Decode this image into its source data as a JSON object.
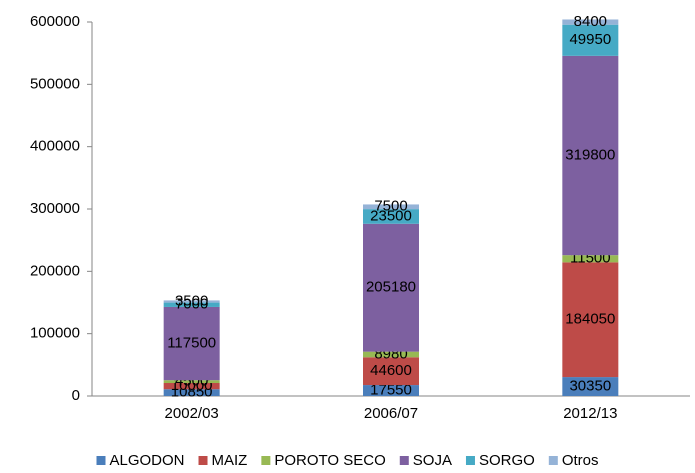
{
  "chart_data": {
    "type": "stacked_bar",
    "categories": [
      "2002/03",
      "2006/07",
      "2012/13"
    ],
    "series": [
      {
        "name": "ALGODON",
        "color": "#4a7ebb",
        "values": [
          10850,
          17550,
          30350
        ]
      },
      {
        "name": "MAIZ",
        "color": "#be4b48",
        "values": [
          10000,
          44600,
          184050
        ]
      },
      {
        "name": "POROTO SECO",
        "color": "#98b954",
        "values": [
          4500,
          8980,
          11500
        ]
      },
      {
        "name": "SOJA",
        "color": "#7d60a0",
        "values": [
          117500,
          205180,
          319800
        ]
      },
      {
        "name": "SORGO",
        "color": "#46aac5",
        "values": [
          7000,
          23500,
          49950
        ]
      },
      {
        "name": "Otros",
        "color": "#95b3d7",
        "values": [
          3500,
          7500,
          8400
        ]
      }
    ],
    "ylim": [
      0,
      600000
    ],
    "yticks": [
      0,
      100000,
      200000,
      300000,
      400000,
      500000,
      600000
    ],
    "legend": "bottom"
  }
}
